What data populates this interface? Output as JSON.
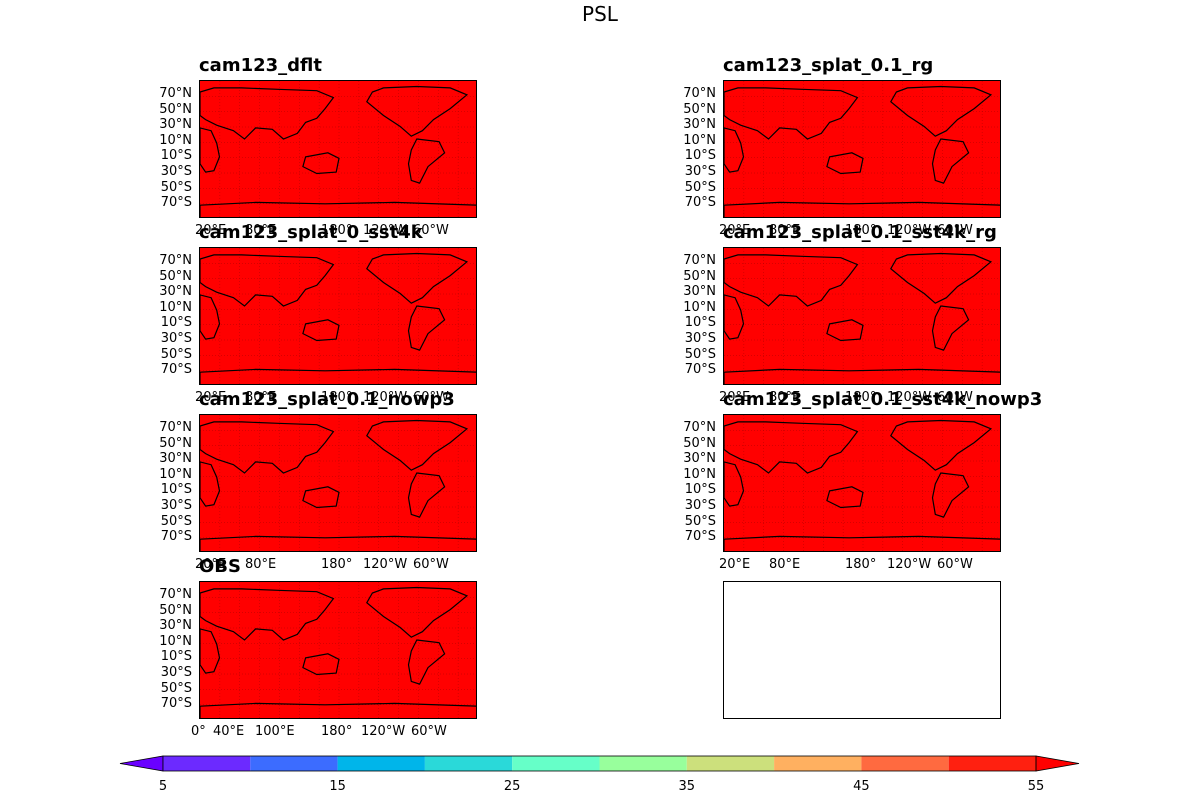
{
  "figure": {
    "title": "PSL"
  },
  "panels": [
    {
      "title": "cam123_dflt",
      "lon_ticks": [
        "20°E",
        "80°E",
        "180°",
        "120°W",
        "60°W"
      ]
    },
    {
      "title": "cam123_splat_0.1_rg",
      "lon_ticks": [
        "20°E",
        "80°E",
        "180°",
        "120°W",
        "60°W"
      ]
    },
    {
      "title": "cam123_splat_0_sst4k",
      "lon_ticks": [
        "20°E",
        "80°E",
        "180°",
        "120°W",
        "60°W"
      ]
    },
    {
      "title": "cam123_splat_0.1_sst4k_rg",
      "lon_ticks": [
        "20°E",
        "80°E",
        "180°",
        "120°W",
        "60°W"
      ]
    },
    {
      "title": "cam123_splat_0.1_nowp3",
      "lon_ticks": [
        "20°E",
        "80°E",
        "180°",
        "120°W",
        "60°W"
      ]
    },
    {
      "title": "cam123_splat_0.1_sst4k_nowp3",
      "lon_ticks": [
        "20°E",
        "80°E",
        "180°",
        "120°W",
        "60°W"
      ]
    },
    {
      "title": "OBS",
      "lon_ticks": [
        "0°",
        "40°E",
        "100°E",
        "180°",
        "120°W",
        "60°W"
      ]
    }
  ],
  "lat_ticks": [
    "70°N",
    "50°N",
    "30°N",
    "10°N",
    "10°S",
    "30°S",
    "50°S",
    "70°S"
  ],
  "chart_data": {
    "type": "heatmap",
    "title": "PSL",
    "field_value_approx": 55,
    "colorbar": {
      "levels": [
        5,
        10,
        15,
        20,
        25,
        30,
        35,
        40,
        45,
        50,
        55
      ],
      "tick_labels": [
        "5",
        "15",
        "25",
        "35",
        "45",
        "55"
      ],
      "extend": "both",
      "colors": [
        "#6a00ff",
        "#6c2aff",
        "#3c6cff",
        "#00b5ea",
        "#2ad9d9",
        "#66ffc8",
        "#98ff9c",
        "#cce07c",
        "#ffb060",
        "#ff6a40",
        "#ff2010",
        "#ff0000"
      ]
    }
  }
}
